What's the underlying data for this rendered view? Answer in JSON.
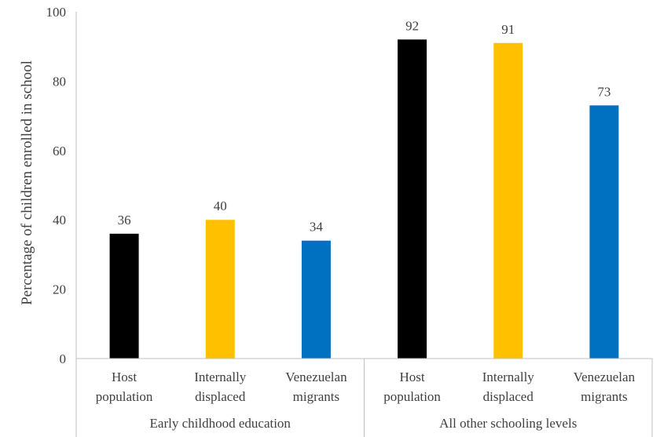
{
  "chart_data": {
    "type": "bar",
    "title": "",
    "xlabel": "",
    "ylabel": "Percentage of children enrolled in school",
    "ylim": [
      0,
      100
    ],
    "yticks": [
      0,
      20,
      40,
      60,
      80,
      100
    ],
    "grid": false,
    "legend": "none",
    "groups": [
      {
        "name": "Early childhood education",
        "bars": [
          {
            "category": [
              "Host",
              "population"
            ],
            "value": 36,
            "color": "#000000"
          },
          {
            "category": [
              "Internally",
              "displaced"
            ],
            "value": 40,
            "color": "#FFC000"
          },
          {
            "category": [
              "Venezuelan",
              "migrants"
            ],
            "value": 34,
            "color": "#0070C0"
          }
        ]
      },
      {
        "name": "All other schooling levels",
        "bars": [
          {
            "category": [
              "Host",
              "population"
            ],
            "value": 92,
            "color": "#000000"
          },
          {
            "category": [
              "Internally",
              "displaced"
            ],
            "value": 91,
            "color": "#FFC000"
          },
          {
            "category": [
              "Venezuelan",
              "migrants"
            ],
            "value": 73,
            "color": "#0070C0"
          }
        ]
      }
    ]
  }
}
